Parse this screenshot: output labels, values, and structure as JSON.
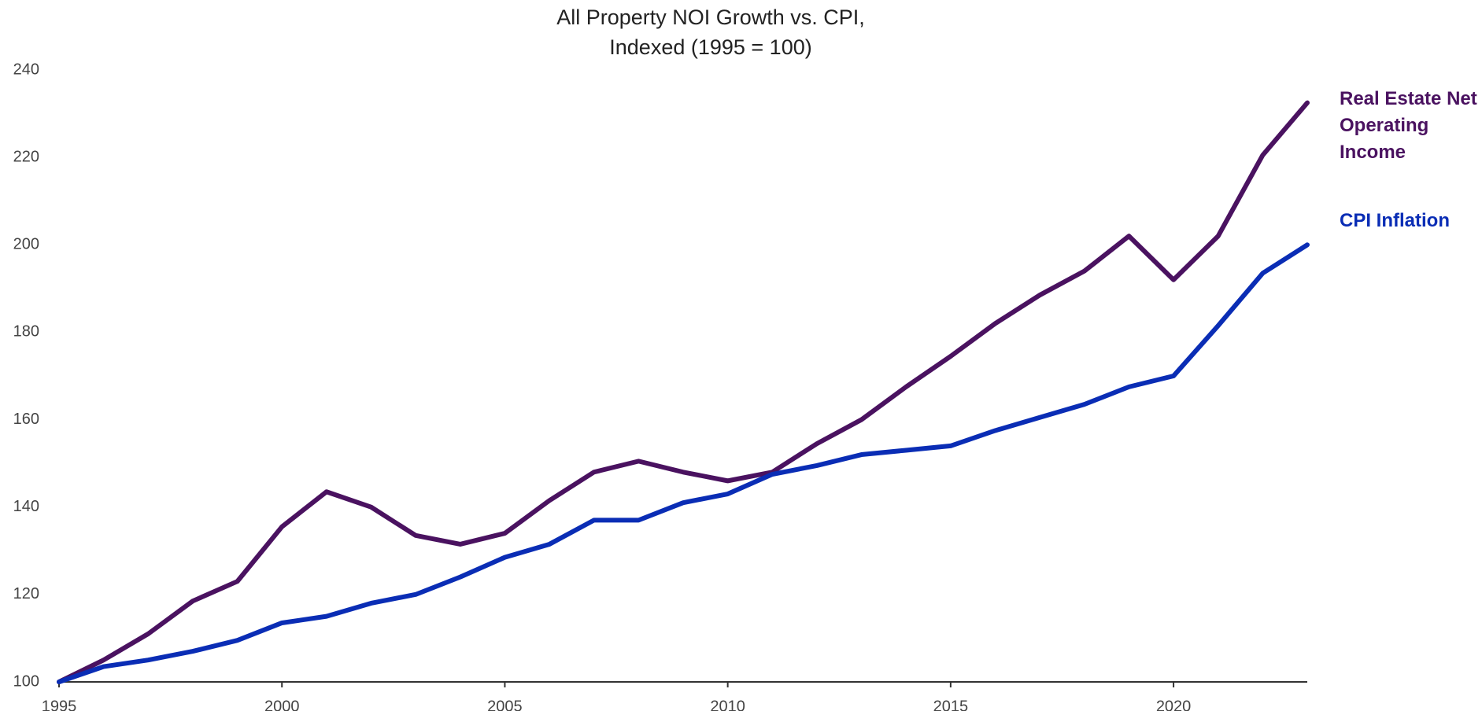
{
  "chart_data": {
    "type": "line",
    "title": "All Property NOI Growth vs. CPI,",
    "subtitle": "Indexed (1995 = 100)",
    "x": [
      1995,
      1996,
      1997,
      1998,
      1999,
      2000,
      2001,
      2002,
      2003,
      2004,
      2005,
      2006,
      2007,
      2008,
      2009,
      2010,
      2011,
      2012,
      2013,
      2014,
      2015,
      2016,
      2017,
      2018,
      2019,
      2020,
      2021,
      2022,
      2023
    ],
    "series": [
      {
        "name": "Real Estate Net Operating Income",
        "color": "#4a1260",
        "values": [
          100,
          105,
          111,
          118.5,
          123,
          135.5,
          143.5,
          140,
          133.5,
          131.5,
          134,
          141.5,
          148,
          150.5,
          148,
          146,
          148,
          154.5,
          160,
          167.5,
          174.5,
          182,
          188.5,
          194,
          202,
          192,
          202,
          220.5,
          232.5
        ]
      },
      {
        "name": "CPI Inflation",
        "color": "#0a2db5",
        "values": [
          100,
          103.5,
          105,
          107,
          109.5,
          113.5,
          115,
          118,
          120,
          124,
          128.5,
          131.5,
          137,
          137,
          141,
          143,
          147.5,
          149.5,
          152,
          153,
          154,
          157.5,
          160.5,
          163.5,
          167.5,
          170,
          181.5,
          193.5,
          200
        ]
      }
    ],
    "xlim": [
      1995,
      2023
    ],
    "xticks": [
      1995,
      2000,
      2005,
      2010,
      2015,
      2020
    ],
    "ylim": [
      100,
      240
    ],
    "yticks": [
      100,
      120,
      140,
      160,
      180,
      200,
      220,
      240
    ],
    "grid": false
  }
}
